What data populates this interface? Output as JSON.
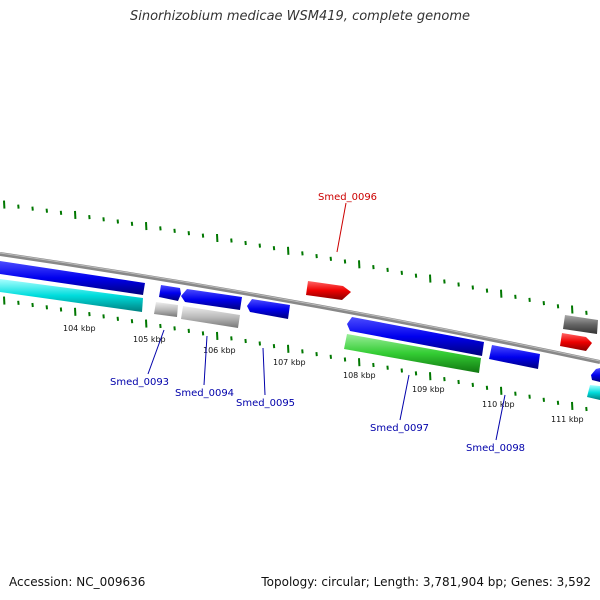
{
  "header": {
    "title": "Sinorhizobium medicae WSM419, complete genome"
  },
  "footer": {
    "accession": "Accession: NC_009636",
    "summary": "Topology: circular; Length: 3,781,904 bp; Genes: 3,592"
  },
  "scale": {
    "ticks": [
      "104 kbp",
      "105 kbp",
      "106 kbp",
      "107 kbp",
      "108 kbp",
      "109 kbp",
      "110 kbp",
      "111 kbp"
    ]
  },
  "genes": [
    {
      "name": "Smed_0093",
      "color": "#0000aa"
    },
    {
      "name": "Smed_0094",
      "color": "#0000aa"
    },
    {
      "name": "Smed_0095",
      "color": "#0000aa"
    },
    {
      "name": "Smed_0096",
      "color": "#cc0000"
    },
    {
      "name": "Smed_0097",
      "color": "#0000aa"
    },
    {
      "name": "Smed_0098",
      "color": "#0000aa"
    }
  ],
  "colors": {
    "cds": "#0000ee",
    "rrna": "#00cccc",
    "trna": "#33cc33",
    "pseudo": "#bbbbbb",
    "misc": "#ee0000",
    "other": "#666666",
    "backbone": "#888888",
    "tick": "#007700"
  }
}
